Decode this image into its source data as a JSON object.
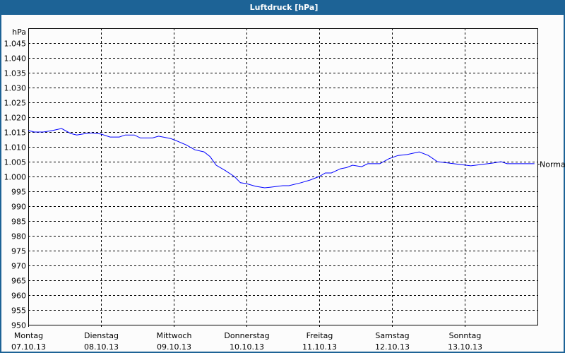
{
  "window": {
    "title": "Luftdruck [hPa]"
  },
  "colors": {
    "titlebar": "#1d6396",
    "series": "#0000ff",
    "grid": "#000000"
  },
  "chart_data": {
    "type": "line",
    "title": "Luftdruck [hPa]",
    "ylabel": "hPa",
    "ylim": [
      950,
      1050
    ],
    "ytick_values": [
      1045,
      1040,
      1035,
      1030,
      1025,
      1020,
      1015,
      1010,
      1005,
      1000,
      995,
      990,
      985,
      980,
      975,
      970,
      965,
      960,
      955,
      950
    ],
    "ytick_labels": [
      "1.045",
      "1.040",
      "1.035",
      "1.030",
      "1.025",
      "1.020",
      "1.015",
      "1.010",
      "1.005",
      "1.000",
      "995",
      "990",
      "985",
      "980",
      "975",
      "970",
      "965",
      "960",
      "955",
      "950"
    ],
    "xlim": [
      "07.10.13 00:00",
      "14.10.13 00:00"
    ],
    "xticks": [
      {
        "day": "Montag",
        "date": "07.10.13"
      },
      {
        "day": "Dienstag",
        "date": "08.10.13"
      },
      {
        "day": "Mittwoch",
        "date": "09.10.13"
      },
      {
        "day": "Donnerstag",
        "date": "10.10.13"
      },
      {
        "day": "Freitag",
        "date": "11.10.13"
      },
      {
        "day": "Samstag",
        "date": "12.10.13"
      },
      {
        "day": "Sonntag",
        "date": "13.10.13"
      }
    ],
    "grid": true,
    "annotation": "Normal",
    "series": [
      {
        "x": [
          "07.10.13 00:00",
          "07.10.13 02:00",
          "07.10.13 05:00",
          "07.10.13 08:00",
          "07.10.13 11:00",
          "07.10.13 14:00",
          "07.10.13 16:00",
          "07.10.13 19:00",
          "07.10.13 21:00",
          "08.10.13 00:00",
          "08.10.13 03:00",
          "08.10.13 06:00",
          "08.10.13 08:00",
          "08.10.13 11:00",
          "08.10.13 13:00",
          "08.10.13 17:00",
          "08.10.13 19:00",
          "08.10.13 23:00",
          "09.10.13 01:00",
          "09.10.13 04:00",
          "09.10.13 07:00",
          "09.10.13 10:00",
          "09.10.13 12:00",
          "09.10.13 14:00",
          "09.10.13 17:00",
          "09.10.13 20:00",
          "09.10.13 22:00",
          "10.10.13 00:00",
          "10.10.13 03:00",
          "10.10.13 06:00",
          "10.10.13 08:00",
          "10.10.13 12:00",
          "10.10.13 14:00",
          "10.10.13 18:00",
          "10.10.13 21:00",
          "11.10.13 00:00",
          "11.10.13 02:00",
          "11.10.13 04:00",
          "11.10.13 07:00",
          "11.10.13 09:00",
          "11.10.13 11:00",
          "11.10.13 14:00",
          "11.10.13 16:00",
          "11.10.13 20:00",
          "11.10.13 23:00",
          "12.10.13 02:00",
          "12.10.13 05:00",
          "12.10.13 09:00",
          "12.10.13 12:00",
          "12.10.13 15:00",
          "12.10.13 19:00",
          "12.10.13 23:00",
          "13.10.13 02:00",
          "13.10.13 05:00",
          "13.10.13 09:00",
          "13.10.13 12:00",
          "13.10.13 14:00",
          "13.10.13 21:00",
          "13.10.13 23:00"
        ],
        "y": [
          1015.5,
          1015,
          1015,
          1015.5,
          1016.2,
          1014.5,
          1014,
          1014.5,
          1014.7,
          1014.3,
          1013.3,
          1013.3,
          1014,
          1014,
          1013,
          1013,
          1013.6,
          1012.8,
          1012,
          1010.7,
          1009,
          1008.3,
          1006.7,
          1003.8,
          1002,
          1000,
          997.9,
          997.6,
          996.7,
          996.2,
          996.4,
          996.9,
          996.9,
          997.9,
          998.8,
          1000,
          1001.2,
          1001.2,
          1002.6,
          1003,
          1003.8,
          1003.3,
          1004.3,
          1004.3,
          1006,
          1007.1,
          1007.4,
          1008.3,
          1007.1,
          1005,
          1004.5,
          1004,
          1003.6,
          1004,
          1004.5,
          1005,
          1004.3,
          1004.3,
          1004.3
        ]
      }
    ]
  }
}
